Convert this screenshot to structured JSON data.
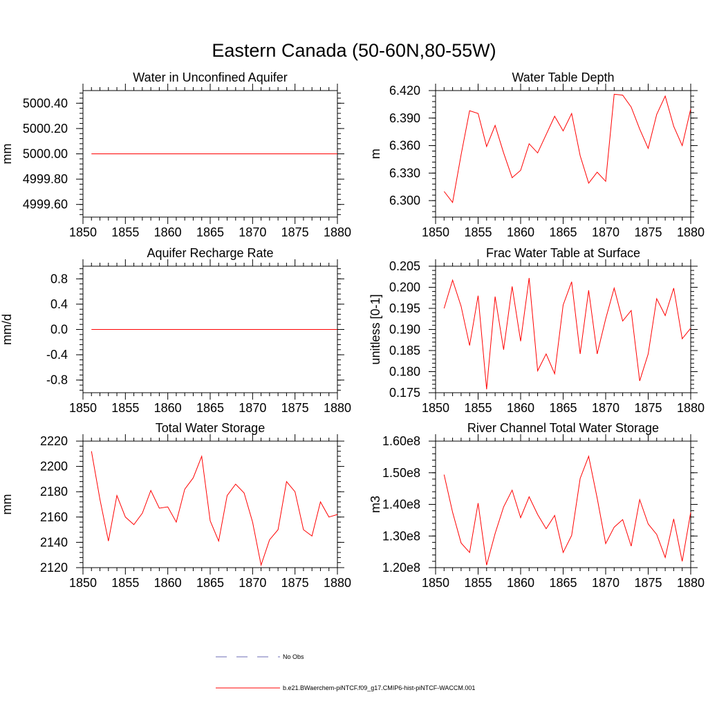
{
  "figure": {
    "title": "Eastern Canada (50-60N,80-55W)"
  },
  "legend": {
    "entries": [
      {
        "label": "No Obs",
        "color": "#6b6bb5",
        "dash": true
      },
      {
        "label": "b.e21.BWaerchem-piNTCF.f09_g17.CMIP6-hist-piNTCF-WACCM.001",
        "color": "#ff0000",
        "dash": false
      }
    ]
  },
  "colors": {
    "model_line": "#ff0000",
    "obs_line": "#6b6bb5"
  },
  "chart_data": [
    {
      "type": "line",
      "title": "Water in Unconfined Aquifer",
      "ylabel": "mm",
      "xlim": [
        1850,
        1880
      ],
      "ylim": [
        4999.5,
        5000.5
      ],
      "xticks": [
        1850,
        1855,
        1860,
        1865,
        1870,
        1875,
        1880
      ],
      "yticks": [
        4999.6,
        4999.8,
        5000.0,
        5000.2,
        5000.4
      ],
      "ytick_labels": [
        "4999.60",
        "4999.80",
        "5000.00",
        "5000.20",
        "5000.40"
      ],
      "series": [
        {
          "name": "b.e21.BWaerchem-piNTCF.f09_g17.CMIP6-hist-piNTCF-WACCM.001",
          "x": [
            1851,
            1852,
            1853,
            1854,
            1855,
            1856,
            1857,
            1858,
            1859,
            1860,
            1861,
            1862,
            1863,
            1864,
            1865,
            1866,
            1867,
            1868,
            1869,
            1870,
            1871,
            1872,
            1873,
            1874,
            1875,
            1876,
            1877,
            1878,
            1879,
            1880
          ],
          "values": [
            5000,
            5000,
            5000,
            5000,
            5000,
            5000,
            5000,
            5000,
            5000,
            5000,
            5000,
            5000,
            5000,
            5000,
            5000,
            5000,
            5000,
            5000,
            5000,
            5000,
            5000,
            5000,
            5000,
            5000,
            5000,
            5000,
            5000,
            5000,
            5000,
            5000
          ]
        }
      ]
    },
    {
      "type": "line",
      "title": "Water Table Depth",
      "ylabel": "m",
      "xlim": [
        1850,
        1880
      ],
      "ylim": [
        6.282,
        6.42
      ],
      "xticks": [
        1850,
        1855,
        1860,
        1865,
        1870,
        1875,
        1880
      ],
      "yticks": [
        6.3,
        6.33,
        6.36,
        6.39,
        6.42
      ],
      "ytick_labels": [
        "6.300",
        "6.330",
        "6.360",
        "6.390",
        "6.420"
      ],
      "series": [
        {
          "name": "b.e21.BWaerchem-piNTCF.f09_g17.CMIP6-hist-piNTCF-WACCM.001",
          "x": [
            1851,
            1852,
            1853,
            1854,
            1855,
            1856,
            1857,
            1858,
            1859,
            1860,
            1861,
            1862,
            1863,
            1864,
            1865,
            1866,
            1867,
            1868,
            1869,
            1870,
            1871,
            1872,
            1873,
            1874,
            1875,
            1876,
            1877,
            1878,
            1879,
            1880
          ],
          "values": [
            6.31,
            6.298,
            6.35,
            6.398,
            6.395,
            6.359,
            6.382,
            6.352,
            6.325,
            6.333,
            6.362,
            6.352,
            6.372,
            6.392,
            6.376,
            6.395,
            6.349,
            6.319,
            6.331,
            6.321,
            6.416,
            6.415,
            6.402,
            6.378,
            6.357,
            6.394,
            6.414,
            6.381,
            6.36,
            6.4
          ]
        }
      ]
    },
    {
      "type": "line",
      "title": "Aquifer Recharge Rate",
      "ylabel": "mm/d",
      "xlim": [
        1850,
        1880
      ],
      "ylim": [
        -1,
        1
      ],
      "xticks": [
        1850,
        1855,
        1860,
        1865,
        1870,
        1875,
        1880
      ],
      "yticks": [
        -0.8,
        -0.4,
        0.0,
        0.4,
        0.8
      ],
      "ytick_labels": [
        "-0.8",
        "-0.4",
        "0.0",
        "0.4",
        "0.8"
      ],
      "series": [
        {
          "name": "b.e21.BWaerchem-piNTCF.f09_g17.CMIP6-hist-piNTCF-WACCM.001",
          "x": [
            1851,
            1852,
            1853,
            1854,
            1855,
            1856,
            1857,
            1858,
            1859,
            1860,
            1861,
            1862,
            1863,
            1864,
            1865,
            1866,
            1867,
            1868,
            1869,
            1870,
            1871,
            1872,
            1873,
            1874,
            1875,
            1876,
            1877,
            1878,
            1879,
            1880
          ],
          "values": [
            0,
            0,
            0,
            0,
            0,
            0,
            0,
            0,
            0,
            0,
            0,
            0,
            0,
            0,
            0,
            0,
            0,
            0,
            0,
            0,
            0,
            0,
            0,
            0,
            0,
            0,
            0,
            0,
            0,
            0
          ]
        }
      ]
    },
    {
      "type": "line",
      "title": "Frac Water Table at Surface",
      "ylabel": "unitless [0-1]",
      "xlim": [
        1850,
        1880
      ],
      "ylim": [
        0.175,
        0.205
      ],
      "xticks": [
        1850,
        1855,
        1860,
        1865,
        1870,
        1875,
        1880
      ],
      "yticks": [
        0.175,
        0.18,
        0.185,
        0.19,
        0.195,
        0.2,
        0.205
      ],
      "ytick_labels": [
        "0.175",
        "0.180",
        "0.185",
        "0.190",
        "0.195",
        "0.200",
        "0.205"
      ],
      "series": [
        {
          "name": "b.e21.BWaerchem-piNTCF.f09_g17.CMIP6-hist-piNTCF-WACCM.001",
          "x": [
            1851,
            1852,
            1853,
            1854,
            1855,
            1856,
            1857,
            1858,
            1859,
            1860,
            1861,
            1862,
            1863,
            1864,
            1865,
            1866,
            1867,
            1868,
            1869,
            1870,
            1871,
            1872,
            1873,
            1874,
            1875,
            1876,
            1877,
            1878,
            1879,
            1880
          ],
          "values": [
            0.195,
            0.2017,
            0.1955,
            0.1862,
            0.198,
            0.1758,
            0.1978,
            0.1852,
            0.2002,
            0.1872,
            0.2022,
            0.1802,
            0.1842,
            0.1795,
            0.1958,
            0.2013,
            0.1842,
            0.1993,
            0.1842,
            0.1925,
            0.1998,
            0.192,
            0.1945,
            0.1778,
            0.1842,
            0.1973,
            0.1933,
            0.1998,
            0.1878,
            0.1903
          ]
        }
      ]
    },
    {
      "type": "line",
      "title": "Total Water Storage",
      "ylabel": "mm",
      "xlim": [
        1850,
        1880
      ],
      "ylim": [
        2120,
        2220
      ],
      "xticks": [
        1850,
        1855,
        1860,
        1865,
        1870,
        1875,
        1880
      ],
      "yticks": [
        2120,
        2140,
        2160,
        2180,
        2200,
        2220
      ],
      "ytick_labels": [
        "2120",
        "2140",
        "2160",
        "2180",
        "2200",
        "2220"
      ],
      "series": [
        {
          "name": "b.e21.BWaerchem-piNTCF.f09_g17.CMIP6-hist-piNTCF-WACCM.001",
          "x": [
            1851,
            1852,
            1853,
            1854,
            1855,
            1856,
            1857,
            1858,
            1859,
            1860,
            1861,
            1862,
            1863,
            1864,
            1865,
            1866,
            1867,
            1868,
            1869,
            1870,
            1871,
            1872,
            1873,
            1874,
            1875,
            1876,
            1877,
            1878,
            1879,
            1880
          ],
          "values": [
            2212,
            2174,
            2141,
            2177,
            2160,
            2154,
            2163,
            2181,
            2167,
            2168,
            2156,
            2182,
            2191,
            2208,
            2157,
            2141,
            2177,
            2186,
            2179,
            2156,
            2122,
            2142,
            2150,
            2188,
            2180,
            2150,
            2145,
            2172,
            2160,
            2162
          ]
        }
      ]
    },
    {
      "type": "line",
      "title": "River Channel Total Water Storage",
      "ylabel": "m3",
      "xlim": [
        1850,
        1880
      ],
      "ylim": [
        120000000.0,
        160000000.0
      ],
      "xticks": [
        1850,
        1855,
        1860,
        1865,
        1870,
        1875,
        1880
      ],
      "yticks": [
        120000000.0,
        130000000.0,
        140000000.0,
        150000000.0,
        160000000.0
      ],
      "ytick_labels": [
        "1.20e8",
        "1.30e8",
        "1.40e8",
        "1.50e8",
        "1.60e8"
      ],
      "series": [
        {
          "name": "b.e21.BWaerchem-piNTCF.f09_g17.CMIP6-hist-piNTCF-WACCM.001",
          "x": [
            1851,
            1852,
            1853,
            1854,
            1855,
            1856,
            1857,
            1858,
            1859,
            1860,
            1861,
            1862,
            1863,
            1864,
            1865,
            1866,
            1867,
            1868,
            1869,
            1870,
            1871,
            1872,
            1873,
            1874,
            1875,
            1876,
            1877,
            1878,
            1879,
            1880
          ],
          "values": [
            149400000.0,
            137500000.0,
            127800000.0,
            124800000.0,
            140400000.0,
            120800000.0,
            130800000.0,
            139200000.0,
            144500000.0,
            135800000.0,
            142400000.0,
            136800000.0,
            132300000.0,
            136500000.0,
            124800000.0,
            130200000.0,
            148200000.0,
            155200000.0,
            142000000.0,
            127600000.0,
            132800000.0,
            135200000.0,
            126800000.0,
            141500000.0,
            133800000.0,
            130500000.0,
            123200000.0,
            135400000.0,
            122000000.0,
            137500000.0
          ]
        }
      ]
    }
  ]
}
